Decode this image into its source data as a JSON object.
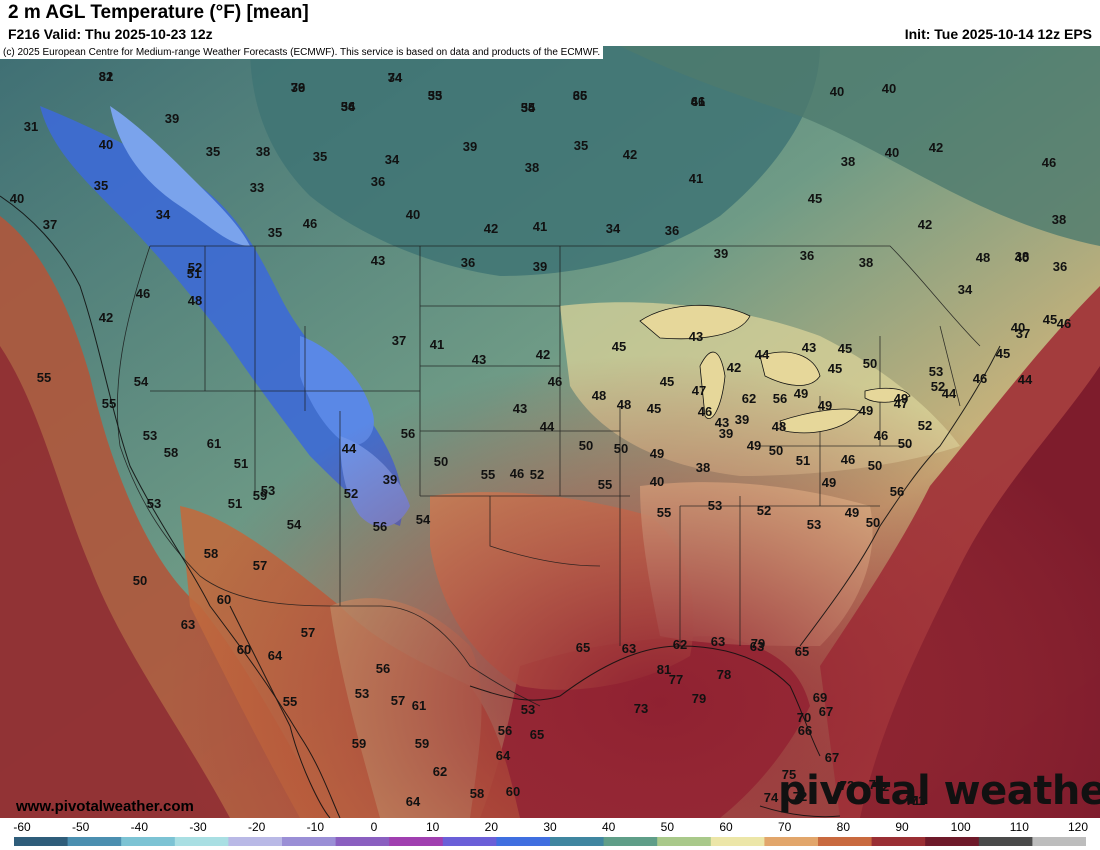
{
  "header": {
    "title": "2 m AGL Temperature (°F) [mean]",
    "valid": "F216 Valid: Thu 2025-10-23 12z",
    "init": "Init: Tue 2025-10-14 12z EPS"
  },
  "copyright": "(c) 2025 European Centre for Medium-range Weather Forecasts (ECMWF). This service is based on data and products of the ECMWF.",
  "footer": {
    "website": "www.pivotalweather.com",
    "logo": "pivotal weather"
  },
  "colorbar": {
    "ticks": [
      "-60",
      "-50",
      "-40",
      "-30",
      "-20",
      "-10",
      "0",
      "10",
      "20",
      "30",
      "40",
      "50",
      "60",
      "70",
      "80",
      "90",
      "100",
      "110",
      "120"
    ],
    "colors": [
      "#2f5d7a",
      "#4b8fb0",
      "#7cc3d4",
      "#a9dfe3",
      "#b9b9e6",
      "#9a8fd6",
      "#8a5fc0",
      "#a03fb0",
      "#6a5fd8",
      "#3f6fe0",
      "#3f86a0",
      "#5f9e88",
      "#a9c98a",
      "#ece6a8",
      "#e2a66b",
      "#c96a3f",
      "#9a2f34",
      "#6e1a2a",
      "#4a4a4a",
      "#bdbdbd"
    ]
  },
  "map_colors": {
    "water": "#2f5a63",
    "cold": "#3d6ad6",
    "cool": "#4f7d7c",
    "mild": "#8cab8a",
    "warm": "#e9dd9e",
    "hot": "#c9673f",
    "ocean_hot": "#8a1f2e"
  },
  "temperatures": [
    "32",
    "36",
    "34",
    "35",
    "34",
    "34",
    "36",
    "41",
    "31",
    "39",
    "40",
    "35",
    "38",
    "35",
    "34",
    "39",
    "35",
    "42",
    "38",
    "41",
    "40",
    "35",
    "37",
    "34",
    "33",
    "36",
    "40",
    "42",
    "41",
    "34",
    "36",
    "36",
    "38",
    "42",
    "48",
    "38",
    "36",
    "38",
    "38",
    "40",
    "45",
    "40",
    "42",
    "46",
    "40",
    "35",
    "46",
    "43",
    "36",
    "39",
    "39",
    "40",
    "46",
    "51",
    "52",
    "48",
    "42",
    "37",
    "41",
    "43",
    "42",
    "45",
    "43",
    "42",
    "44",
    "43",
    "45",
    "50",
    "53",
    "40",
    "34",
    "37",
    "45",
    "46",
    "44",
    "45",
    "44",
    "46",
    "49",
    "45",
    "49",
    "50",
    "49",
    "49",
    "56",
    "62",
    "39",
    "43",
    "46",
    "47",
    "45",
    "45",
    "48",
    "48",
    "46",
    "43",
    "44",
    "46",
    "50",
    "50",
    "49",
    "40",
    "38",
    "39",
    "49",
    "48",
    "51",
    "49",
    "46",
    "46",
    "47",
    "52",
    "52",
    "50",
    "50",
    "56",
    "50",
    "49",
    "53",
    "52",
    "53",
    "55",
    "55",
    "52",
    "55",
    "56",
    "39",
    "44",
    "50",
    "54",
    "56",
    "52",
    "54",
    "51",
    "53",
    "51",
    "50",
    "53",
    "58",
    "54",
    "55",
    "55",
    "53",
    "61",
    "59",
    "57",
    "58",
    "60",
    "63",
    "60",
    "64",
    "55",
    "57",
    "53",
    "56",
    "57",
    "61",
    "59",
    "59",
    "62",
    "64",
    "58",
    "60",
    "56",
    "65",
    "64",
    "53",
    "65",
    "63",
    "62",
    "63",
    "63",
    "65",
    "69",
    "66",
    "67",
    "67",
    "70",
    "71",
    "71",
    "71",
    "72",
    "72",
    "72",
    "74",
    "75",
    "73",
    "79",
    "77",
    "78",
    "79",
    "81",
    "81",
    "79",
    "74",
    "53",
    "56",
    "55",
    "65",
    "66"
  ],
  "labels_by_region": {}
}
